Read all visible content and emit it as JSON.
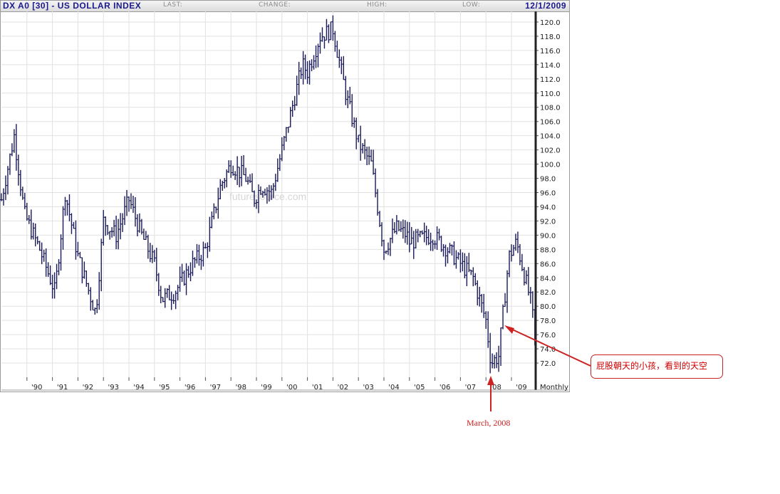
{
  "header": {
    "title": "DX A0 [30] - US DOLLAR INDEX",
    "last_label": "LAST:",
    "change_label": "CHANGE:",
    "high_label": "HIGH:",
    "low_label": "LOW:",
    "date": "12/1/2009"
  },
  "watermark": "futuresource.com",
  "annotations": {
    "callout_text": "屁股朝天的小孩，看到的天空",
    "march_label": "March, 2008"
  },
  "colors": {
    "bars": "#1a1a5a",
    "annotation": "#cc2222",
    "title": "#1a1a8c",
    "grid": "#e2e2e2"
  },
  "chart_data": {
    "type": "bar",
    "style": "ohlc",
    "title": "DX A0 [30] - US DOLLAR INDEX",
    "ylabel": "",
    "xlabel": "",
    "ylim": [
      70,
      121.5
    ],
    "y_ticks": [
      "72.0",
      "74.0",
      "76.0",
      "78.0",
      "80.0",
      "82.0",
      "84.0",
      "86.0",
      "88.0",
      "90.0",
      "92.0",
      "94.0",
      "96.0",
      "98.0",
      "100.0",
      "102.0",
      "104.0",
      "106.0",
      "108.0",
      "110.0",
      "112.0",
      "114.0",
      "116.0",
      "118.0",
      "120.0"
    ],
    "x_ticks": [
      "'90",
      "'91",
      "'92",
      "'93",
      "'94",
      "'95",
      "'96",
      "'97",
      "'98",
      "'99",
      "'00",
      "'01",
      "'02",
      "'03",
      "'04",
      "'05",
      "'06",
      "'07",
      "'08",
      "'09"
    ],
    "x_axis_note": "Monthly",
    "grid": true,
    "series": [
      {
        "x": [
          1989.0,
          1989.5,
          1989.9,
          1990.5,
          1991.0,
          1991.1,
          1991.5,
          1992.0,
          1992.7,
          1993.0,
          1993.5,
          1994.0,
          1994.5,
          1995.0,
          1995.3,
          1995.8,
          1996.5,
          1997.0,
          1997.6,
          1998.0,
          1998.6,
          1998.9,
          1999.2,
          1999.6,
          2000.0,
          2000.8,
          2001.0,
          2001.5,
          2002.0,
          2002.5,
          2003.0,
          2003.5,
          2004.0,
          2004.5,
          2004.9,
          2005.0,
          2005.9,
          2006.5,
          2007.0,
          2007.5,
          2008.0,
          2008.2,
          2008.5,
          2008.9,
          2009.2,
          2009.8,
          2009.9
        ],
        "values": [
          95,
          104,
          93,
          88,
          83,
          82,
          96,
          87,
          79,
          92,
          90,
          95,
          90,
          86,
          81,
          82,
          86,
          88,
          97,
          100,
          98,
          95,
          97,
          96,
          102,
          114,
          113,
          118,
          119,
          110,
          103,
          100,
          88,
          91,
          90,
          89,
          90,
          88,
          86,
          84,
          78,
          72,
          73,
          87,
          89,
          80,
          75.5
        ]
      }
    ]
  }
}
